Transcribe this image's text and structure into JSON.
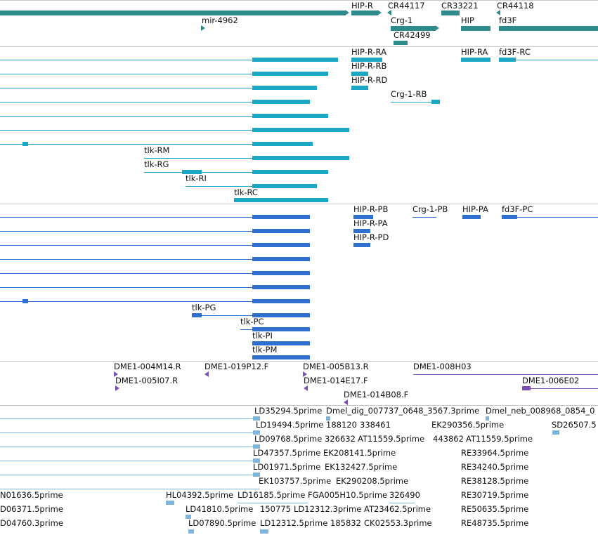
{
  "colors": {
    "gene": "#2e8b8b",
    "transcript_rna": "#1ba6c4",
    "transcript_cds": "#2f6fd0",
    "bac_end": "#7b4fb3",
    "est": "#7fb4dd",
    "divider": "#c8c8c8"
  },
  "tracks": {
    "genes": {
      "labels": [
        "HIP-R",
        "CR44117",
        "CR33221",
        "CR44118",
        "mir-4962",
        "Crg-1",
        "HIP",
        "fd3F",
        "CR42499"
      ]
    },
    "transcripts": {
      "labels": [
        "HIP-R-RA",
        "HIP-RA",
        "fd3F-RC",
        "HIP-R-RB",
        "HIP-R-RD",
        "Crg-1-RB",
        "tlk-RM",
        "tlk-RG",
        "tlk-RI",
        "tlk-RC"
      ]
    },
    "cds": {
      "labels": [
        "HIP-R-PB",
        "Crg-1-PB",
        "HIP-PA",
        "fd3F-PC",
        "HIP-R-PA",
        "HIP-R-PD",
        "tlk-PG",
        "tlk-PC",
        "tlk-PI",
        "tlk-PM"
      ]
    },
    "bac_ends": {
      "labels": [
        "DME1-004M14.R",
        "DME1-019P12.F",
        "DME1-005B13.R",
        "DME1-008H03",
        "DME1-005I07.R",
        "DME1-014E17.F",
        "DME1-006E02",
        "DME1-014B08.F"
      ]
    },
    "ests": {
      "labels": [
        "LD35294.5prime",
        "Dmel_dig_007737_0648_3567.3prime",
        "Dmel_neb_008968_0854_0",
        "LD19494.5prime",
        "188120",
        "338461",
        "EK290356.5prime",
        "SD26507.5",
        "LD09768.5prime",
        "326632",
        "AT11559.5prime",
        "443862",
        "AT11559.5prime",
        "LD47357.5prime",
        "EK208141.5prime",
        "RE33964.5prime",
        "LD01971.5prime",
        "EK132427.5prime",
        "RE34240.5prime",
        "EK103757.5prime",
        "EK290208.5prime",
        "RE38128.5prime",
        "N01636.5prime",
        "HL04392.5prime",
        "LD16185.5prime",
        "FGA005H10.5prime",
        "326490",
        "RE30719.5prime",
        "D06371.5prime",
        "LD41810.5prime",
        "150775",
        "LD12312.3prime",
        "AT23462.5prime",
        "RE50635.5prime",
        "D04760.3prime",
        "LD07890.5prime",
        "LD12312.5prime",
        "185832",
        "CK02553.3prime",
        "RE48735.5prime"
      ]
    }
  }
}
